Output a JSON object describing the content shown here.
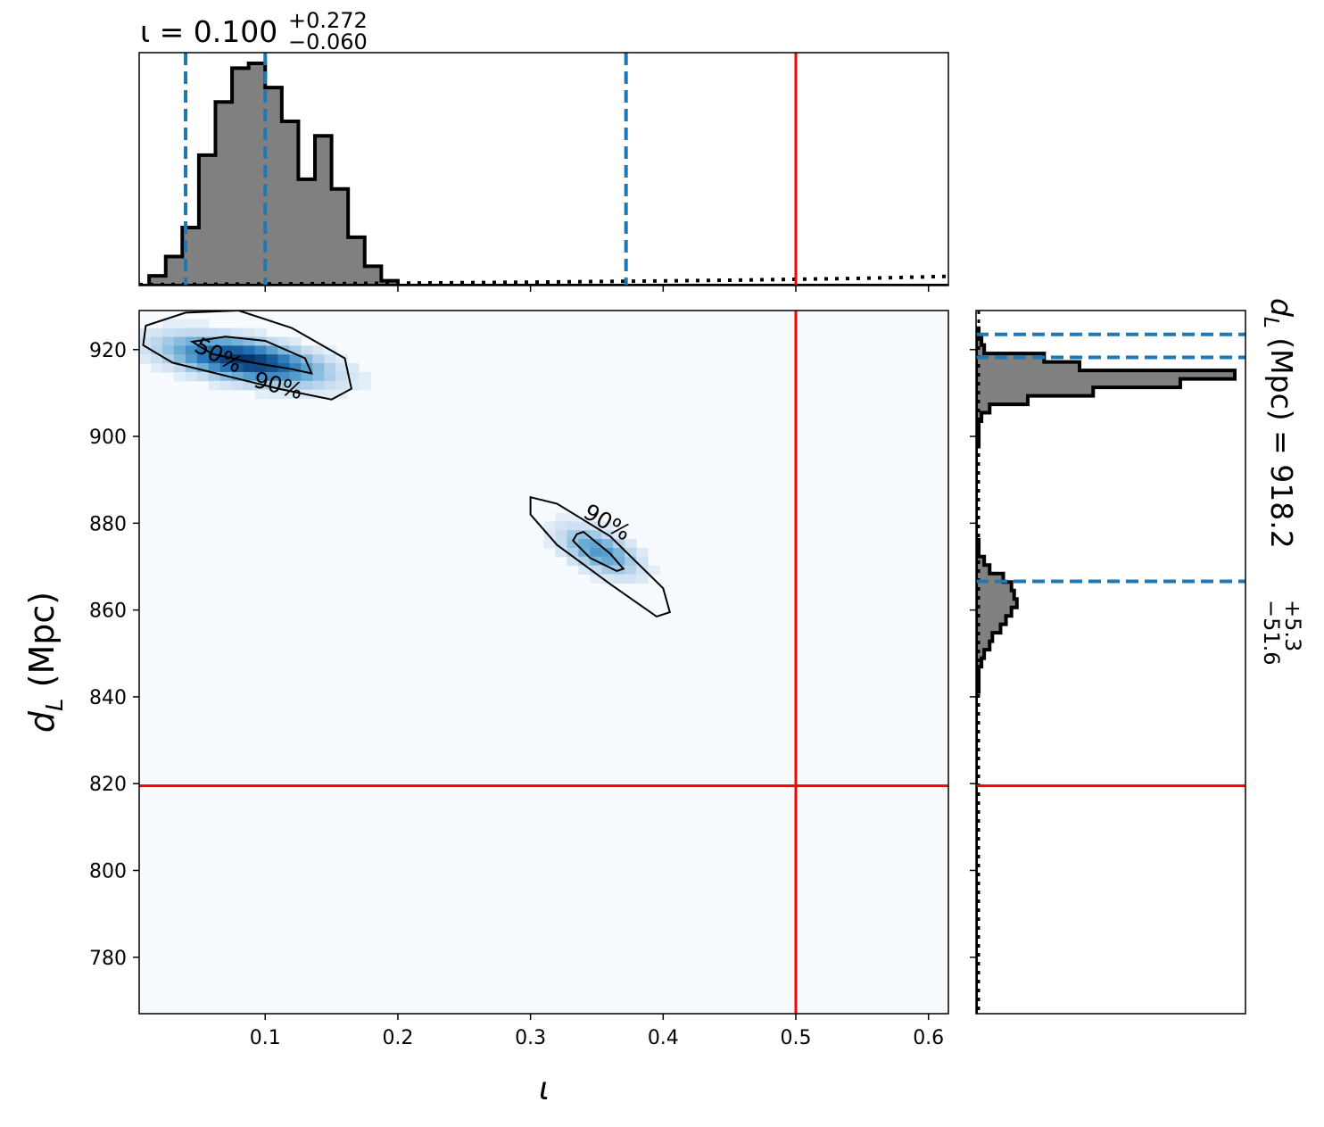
{
  "colors": {
    "histogram_fill": "#808080",
    "histogram_edge": "#000000",
    "quantile_line": "#1f77b4",
    "injection_line": "#ff0000",
    "density_map": [
      "#f7fbff",
      "#c6dbef",
      "#6baed6",
      "#2171b5",
      "#08306b"
    ]
  },
  "chart_data": [
    {
      "id": "iota-marginal",
      "type": "histogram",
      "title_symbol": "ι",
      "title_eq": " = 0.100",
      "title_sup": "+0.272",
      "title_sub": "−0.060",
      "xlim": [
        0.005,
        0.615
      ],
      "bin_width": 0.0125,
      "bin_start": 0.0,
      "counts": [
        0,
        2,
        6,
        12,
        27,
        38,
        45,
        46,
        41,
        34,
        22,
        31,
        20,
        10,
        4,
        1,
        0,
        0,
        0,
        0,
        0,
        0,
        0,
        0,
        0,
        0,
        0,
        0,
        0,
        0,
        0,
        0,
        0,
        0,
        0,
        0,
        0,
        0,
        0,
        0,
        0,
        0,
        0,
        0,
        0,
        0,
        0,
        0,
        0,
        0,
        0,
        0,
        0,
        0,
        0,
        0,
        0,
        0,
        0,
        0
      ],
      "prior_dotted": [
        [
          0.005,
          0.2
        ],
        [
          0.15,
          0.4
        ],
        [
          0.3,
          0.7
        ],
        [
          0.45,
          1.1
        ],
        [
          0.55,
          1.5
        ],
        [
          0.615,
          1.9
        ]
      ],
      "quantiles": [
        0.04,
        0.1,
        0.372
      ],
      "injection": 0.5
    },
    {
      "id": "joint-density",
      "type": "heatmap",
      "xlabel": "ι",
      "ylabel_sym": "d",
      "ylabel_sub": "L",
      "ylabel_unit": " (Mpc)",
      "xlim": [
        0.005,
        0.615
      ],
      "ylim": [
        767,
        929
      ],
      "xticks": [
        {
          "v": 0.1,
          "label": "0.1"
        },
        {
          "v": 0.2,
          "label": "0.2"
        },
        {
          "v": 0.3,
          "label": "0.3"
        },
        {
          "v": 0.4,
          "label": "0.4"
        },
        {
          "v": 0.5,
          "label": "0.5"
        },
        {
          "v": 0.6,
          "label": "0.6"
        }
      ],
      "yticks": [
        {
          "v": 780,
          "label": "780"
        },
        {
          "v": 800,
          "label": "800"
        },
        {
          "v": 820,
          "label": "820"
        },
        {
          "v": 840,
          "label": "840"
        },
        {
          "v": 860,
          "label": "860"
        },
        {
          "v": 880,
          "label": "880"
        },
        {
          "v": 900,
          "label": "900"
        },
        {
          "v": 920,
          "label": "920"
        }
      ],
      "blobs": [
        {
          "cx": 0.085,
          "cy": 917.5,
          "sx": 0.037,
          "sy": 3.4,
          "rho": -0.5,
          "w": 1.0
        },
        {
          "cx": 0.352,
          "cy": 873.5,
          "sx": 0.019,
          "sy": 3.6,
          "rho": -0.55,
          "w": 0.5
        }
      ],
      "contours": [
        {
          "label": "50%",
          "points": [
            [
              0.045,
              921.8
            ],
            [
              0.07,
              923
            ],
            [
              0.1,
              922
            ],
            [
              0.13,
              918
            ],
            [
              0.135,
              914.5
            ],
            [
              0.12,
              915.5
            ],
            [
              0.09,
              917
            ],
            [
              0.06,
              919
            ],
            [
              0.045,
              921.8
            ]
          ]
        },
        {
          "label": "90%",
          "points": [
            [
              0.01,
              925.5
            ],
            [
              0.04,
              928.5
            ],
            [
              0.08,
              929
            ],
            [
              0.12,
              925
            ],
            [
              0.16,
              918
            ],
            [
              0.165,
              911
            ],
            [
              0.15,
              908.5
            ],
            [
              0.11,
              911
            ],
            [
              0.07,
              914
            ],
            [
              0.03,
              917
            ],
            [
              0.008,
              921
            ],
            [
              0.01,
              925.5
            ]
          ]
        },
        {
          "label": "90%",
          "points": [
            [
              0.3,
              886
            ],
            [
              0.32,
              884.5
            ],
            [
              0.36,
              877
            ],
            [
              0.4,
              865
            ],
            [
              0.405,
              859.5
            ],
            [
              0.395,
              858.5
            ],
            [
              0.36,
              866
            ],
            [
              0.32,
              875
            ],
            [
              0.3,
              882
            ],
            [
              0.3,
              886
            ]
          ]
        },
        {
          "label": "",
          "points": [
            [
              0.335,
              877.5
            ],
            [
              0.34,
              878
            ],
            [
              0.36,
              873
            ],
            [
              0.37,
              869.5
            ],
            [
              0.365,
              869
            ],
            [
              0.345,
              872
            ],
            [
              0.332,
              876
            ],
            [
              0.335,
              877.5
            ]
          ]
        }
      ],
      "contour_labels": [
        {
          "text": "50%",
          "x": 0.065,
          "y": 918.8,
          "angle": 27
        },
        {
          "text": "90%",
          "x": 0.11,
          "y": 911.8,
          "angle": 15
        },
        {
          "text": "90%",
          "x": 0.358,
          "y": 880.3,
          "angle": 30
        }
      ],
      "injection": {
        "x": 0.5,
        "y": 819.5
      }
    },
    {
      "id": "dl-marginal",
      "type": "histogram",
      "orientation": "horizontal",
      "title_lhs_sym": "d",
      "title_lhs_sub": "L",
      "title_lhs_unit": " (Mpc) = 918.2",
      "title_sup": "+5.3",
      "title_sub": "−51.6",
      "ylim": [
        767,
        929
      ],
      "bin_width": 1.95,
      "bin_start": 767,
      "counts": [
        0,
        0,
        0,
        0,
        0,
        0,
        0,
        0,
        0,
        0,
        0,
        0,
        0,
        0,
        0,
        0,
        0,
        0,
        0,
        0,
        0,
        0,
        0,
        0,
        0,
        0,
        0,
        0,
        0,
        0,
        0,
        0,
        0,
        0,
        0,
        0,
        0,
        0,
        1,
        1,
        1,
        2,
        3,
        5,
        6,
        9,
        11,
        13,
        15,
        14,
        13,
        10,
        5,
        3,
        1,
        1,
        0,
        0,
        0,
        0,
        0,
        0,
        0,
        0,
        0,
        0,
        0,
        1,
        1,
        1,
        2,
        5,
        19,
        43,
        75,
        95,
        38,
        25,
        3,
        2,
        1
      ],
      "quantiles": [
        866.6,
        918.2,
        923.5
      ],
      "injection": 819.5
    }
  ]
}
